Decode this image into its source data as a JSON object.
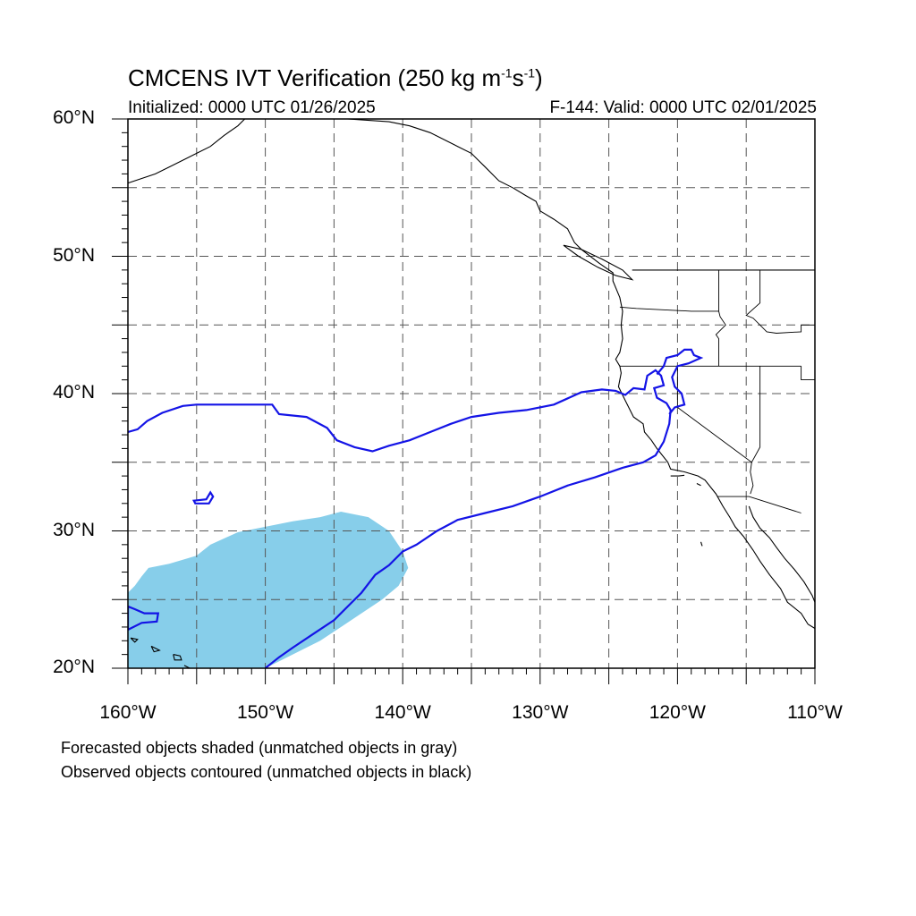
{
  "title": {
    "main": "CMCENS IVT Verification (250 kg m",
    "exp1": "-1",
    "mid": "s",
    "exp2": "-1",
    "close": ")"
  },
  "subtitle": {
    "left": "Initialized: 0000 UTC 01/26/2025",
    "right": "F-144: Valid: 0000 UTC 02/01/2025"
  },
  "map": {
    "extent": {
      "lon_min": -160,
      "lon_max": -110,
      "lat_min": 20,
      "lat_max": 60
    },
    "grid_spacing_deg": 5,
    "lat_labels": [
      {
        "value": 60,
        "text": "60°N"
      },
      {
        "value": 50,
        "text": "50°N"
      },
      {
        "value": 40,
        "text": "40°N"
      },
      {
        "value": 30,
        "text": "30°N"
      },
      {
        "value": 20,
        "text": "20°N"
      }
    ],
    "lon_labels": [
      {
        "value": -160,
        "text": "160°W"
      },
      {
        "value": -150,
        "text": "150°W"
      },
      {
        "value": -140,
        "text": "140°W"
      },
      {
        "value": -130,
        "text": "130°W"
      },
      {
        "value": -120,
        "text": "120°W"
      },
      {
        "value": -110,
        "text": "110°W"
      }
    ],
    "colors": {
      "forecast_fill": "#87ceea",
      "observed_contour": "#1414e6",
      "coastline": "#000000",
      "grid": "#555555"
    },
    "forecast_object": [
      [
        -160,
        20
      ],
      [
        -160,
        25.5
      ],
      [
        -159.5,
        26
      ],
      [
        -159,
        26.7
      ],
      [
        -158.5,
        27.3
      ],
      [
        -157,
        27.6
      ],
      [
        -156,
        27.9
      ],
      [
        -155,
        28.2
      ],
      [
        -154,
        29
      ],
      [
        -152,
        29.9
      ],
      [
        -150,
        30.3
      ],
      [
        -148,
        30.7
      ],
      [
        -146,
        31
      ],
      [
        -144.5,
        31.4
      ],
      [
        -142.5,
        31
      ],
      [
        -141,
        30
      ],
      [
        -140,
        28.5
      ],
      [
        -139.6,
        27.3
      ],
      [
        -140.3,
        26
      ],
      [
        -141.5,
        25
      ],
      [
        -143,
        24
      ],
      [
        -144.5,
        23
      ],
      [
        -146,
        22
      ],
      [
        -148,
        21
      ],
      [
        -150,
        20
      ]
    ],
    "observed_object_1": [
      [
        -160,
        37.2
      ],
      [
        -159.3,
        37.4
      ],
      [
        -158.6,
        38
      ],
      [
        -157.5,
        38.6
      ],
      [
        -156,
        39.1
      ],
      [
        -155,
        39.2
      ],
      [
        -152,
        39.2
      ],
      [
        -149.5,
        39.2
      ],
      [
        -149,
        38.5
      ],
      [
        -147,
        38.3
      ],
      [
        -145.5,
        37.5
      ],
      [
        -144.8,
        36.6
      ],
      [
        -143.5,
        36.1
      ],
      [
        -142.2,
        35.8
      ],
      [
        -141,
        36.2
      ],
      [
        -139.5,
        36.6
      ],
      [
        -138,
        37.2
      ],
      [
        -136.5,
        37.8
      ],
      [
        -135,
        38.3
      ],
      [
        -133,
        38.6
      ],
      [
        -131,
        38.8
      ],
      [
        -129,
        39.2
      ],
      [
        -127,
        40.1
      ],
      [
        -125.5,
        40.3
      ],
      [
        -124.5,
        40.2
      ],
      [
        -123.8,
        39.9
      ],
      [
        -123.2,
        40.4
      ],
      [
        -122.4,
        40.3
      ],
      [
        -122.2,
        41.3
      ],
      [
        -121.6,
        41.7
      ],
      [
        -121.2,
        41.3
      ],
      [
        -121,
        40.6
      ],
      [
        -121.7,
        40.4
      ],
      [
        -121.5,
        39.7
      ],
      [
        -120.8,
        39.3
      ],
      [
        -120.5,
        38.8
      ],
      [
        -120.6,
        37.8
      ],
      [
        -121,
        36.5
      ],
      [
        -121.6,
        35.5
      ],
      [
        -122.5,
        35
      ],
      [
        -124,
        34.6
      ],
      [
        -126,
        33.9
      ],
      [
        -128,
        33.3
      ],
      [
        -130,
        32.5
      ],
      [
        -132,
        31.8
      ],
      [
        -134,
        31.3
      ],
      [
        -136,
        30.8
      ],
      [
        -137.5,
        30
      ],
      [
        -139,
        29
      ],
      [
        -140,
        28.5
      ],
      [
        -141,
        27.5
      ],
      [
        -142,
        26.8
      ],
      [
        -143,
        25.5
      ],
      [
        -144,
        24.5
      ],
      [
        -145,
        23.5
      ],
      [
        -146.5,
        22.5
      ],
      [
        -148,
        21.5
      ],
      [
        -149,
        20.8
      ],
      [
        -150,
        20
      ]
    ],
    "observed_object_2": [
      [
        -121.5,
        41.4
      ],
      [
        -121,
        42
      ],
      [
        -120.8,
        42.6
      ],
      [
        -120,
        42.8
      ],
      [
        -119.5,
        43.2
      ],
      [
        -119,
        43.2
      ],
      [
        -118.8,
        42.8
      ],
      [
        -118.3,
        42.6
      ],
      [
        -119.2,
        42.2
      ],
      [
        -120,
        42
      ],
      [
        -120.4,
        41.2
      ],
      [
        -120.2,
        40.5
      ],
      [
        -119.7,
        40
      ],
      [
        -119.5,
        39.2
      ],
      [
        -120.2,
        39
      ],
      [
        -120.6,
        38.5
      ]
    ],
    "observed_object_3": [
      [
        -155.2,
        32.2
      ],
      [
        -154.3,
        32.3
      ],
      [
        -154,
        32.8
      ],
      [
        -153.8,
        32.5
      ],
      [
        -154.1,
        32
      ],
      [
        -155.1,
        32
      ]
    ],
    "observed_object_4": [
      [
        -160,
        24.5
      ],
      [
        -159.5,
        24.3
      ],
      [
        -158.8,
        24
      ],
      [
        -157.8,
        24
      ],
      [
        -157.9,
        23.4
      ],
      [
        -159,
        23.3
      ],
      [
        -160,
        22.8
      ]
    ],
    "coastline": [
      [
        -161,
        55
      ],
      [
        -158,
        56
      ],
      [
        -157,
        56.5
      ],
      [
        -156,
        57
      ],
      [
        -155,
        57.5
      ],
      [
        -154,
        58
      ],
      [
        -153,
        58.8
      ],
      [
        -152,
        59.5
      ],
      [
        -151.5,
        60
      ],
      [
        -150,
        60.3
      ],
      [
        -148,
        60.5
      ],
      [
        -146,
        60.6
      ],
      [
        -144,
        60
      ],
      [
        -141,
        59.8
      ],
      [
        -139.5,
        59.5
      ],
      [
        -138,
        59
      ],
      [
        -137,
        58.5
      ],
      [
        -136,
        58
      ],
      [
        -135,
        57.5
      ],
      [
        -134.5,
        57
      ],
      [
        -134,
        56.5
      ],
      [
        -133,
        55.5
      ],
      [
        -132,
        55
      ],
      [
        -131,
        54.4
      ],
      [
        -130.3,
        54
      ],
      [
        -130,
        53.3
      ],
      [
        -129,
        52.7
      ],
      [
        -128,
        52
      ],
      [
        -127.5,
        51
      ],
      [
        -127,
        50.5
      ],
      [
        -125.7,
        49.5
      ],
      [
        -124.7,
        48.8
      ],
      [
        -124.7,
        48.2
      ],
      [
        -124.2,
        47
      ],
      [
        -124,
        46
      ],
      [
        -124.1,
        45
      ],
      [
        -124,
        44
      ],
      [
        -124.2,
        43
      ],
      [
        -124.5,
        42.5
      ],
      [
        -124.2,
        42
      ],
      [
        -124.1,
        41.5
      ],
      [
        -124.3,
        40.5
      ],
      [
        -123.8,
        39.5
      ],
      [
        -123.2,
        38.3
      ],
      [
        -122.5,
        37.8
      ],
      [
        -122.4,
        37.2
      ],
      [
        -121.9,
        36.6
      ],
      [
        -121.5,
        36
      ],
      [
        -120.7,
        35
      ],
      [
        -120.5,
        34.5
      ],
      [
        -119.5,
        34.3
      ],
      [
        -118.5,
        34
      ],
      [
        -118,
        33.7
      ],
      [
        -117.2,
        32.7
      ],
      [
        -116.7,
        31.8
      ],
      [
        -116.2,
        31
      ],
      [
        -115.8,
        30.3
      ],
      [
        -115.2,
        29.6
      ],
      [
        -114.5,
        28.6
      ],
      [
        -114,
        27.8
      ],
      [
        -113.3,
        26.8
      ],
      [
        -112.5,
        25.8
      ],
      [
        -112,
        24.8
      ],
      [
        -111,
        24
      ],
      [
        -110.5,
        23.2
      ],
      [
        -110,
        22.9
      ]
    ],
    "gulf_coast": [
      [
        -114.8,
        31.8
      ],
      [
        -114.5,
        31
      ],
      [
        -114,
        30.2
      ],
      [
        -113.3,
        29.5
      ],
      [
        -112.8,
        28.8
      ],
      [
        -112.2,
        28
      ],
      [
        -111.5,
        27.2
      ],
      [
        -110.8,
        26.3
      ],
      [
        -110.2,
        25.3
      ],
      [
        -110,
        24.8
      ]
    ],
    "vancouver_island": [
      [
        -128.3,
        50.8
      ],
      [
        -127,
        50.5
      ],
      [
        -125.5,
        49.8
      ],
      [
        -124,
        49
      ],
      [
        -123.3,
        48.3
      ],
      [
        -124.5,
        48.6
      ],
      [
        -125.8,
        49.2
      ],
      [
        -127.2,
        50
      ],
      [
        -128.3,
        50.8
      ]
    ],
    "canada_us_border": [
      [
        -123.3,
        49
      ],
      [
        -110,
        49
      ]
    ],
    "state_lines": [
      [
        [
          -124.2,
          42
        ],
        [
          -111,
          42
        ]
      ],
      [
        [
          -120,
          42
        ],
        [
          -120,
          39
        ],
        [
          -114.6,
          35
        ]
      ],
      [
        [
          -117,
          49
        ],
        [
          -117,
          46
        ],
        [
          -116.9,
          45.6
        ],
        [
          -116.5,
          45
        ],
        [
          -117.2,
          44.3
        ],
        [
          -117,
          44
        ],
        [
          -117,
          42
        ]
      ],
      [
        [
          -124.2,
          46.3
        ],
        [
          -123,
          46.2
        ],
        [
          -119,
          46
        ],
        [
          -117,
          46
        ]
      ],
      [
        [
          -114,
          49
        ],
        [
          -114,
          46.6
        ],
        [
          -115,
          45.7
        ],
        [
          -114.5,
          45.5
        ],
        [
          -113.5,
          44.5
        ],
        [
          -112.8,
          44.4
        ],
        [
          -111,
          44.5
        ],
        [
          -111,
          45
        ]
      ],
      [
        [
          -114,
          42
        ],
        [
          -114,
          36.1
        ],
        [
          -114.6,
          35
        ],
        [
          -114.7,
          34.3
        ],
        [
          -114.5,
          33.3
        ],
        [
          -114.7,
          32.7
        ]
      ],
      [
        [
          -117.1,
          32.5
        ],
        [
          -114.8,
          32.5
        ],
        [
          -111,
          31.3
        ]
      ],
      [
        [
          -111,
          45
        ],
        [
          -110,
          45
        ]
      ],
      [
        [
          -111,
          42
        ],
        [
          -111,
          41
        ],
        [
          -110,
          41
        ]
      ]
    ],
    "islands": [
      [
        [
          -155.9,
          20.2
        ],
        [
          -155.5,
          20
        ],
        [
          -155,
          19.9
        ]
      ],
      [
        [
          -156.7,
          21
        ],
        [
          -156.2,
          20.9
        ],
        [
          -156.1,
          20.6
        ],
        [
          -156.6,
          20.6
        ],
        [
          -156.7,
          21
        ]
      ],
      [
        [
          -158.3,
          21.6
        ],
        [
          -157.7,
          21.3
        ],
        [
          -158.1,
          21.2
        ],
        [
          -158.3,
          21.6
        ]
      ],
      [
        [
          -159.8,
          22.2
        ],
        [
          -159.3,
          22.1
        ],
        [
          -159.5,
          21.9
        ],
        [
          -159.8,
          22.2
        ]
      ],
      [
        [
          -120.5,
          34
        ],
        [
          -119.9,
          34
        ],
        [
          -119.5,
          34.05
        ]
      ],
      [
        [
          -118.6,
          33.45
        ],
        [
          -118.3,
          33.3
        ]
      ],
      [
        [
          -118.3,
          29.2
        ],
        [
          -118.2,
          28.9
        ]
      ]
    ]
  },
  "footer": {
    "line1": "Forecasted objects shaded (unmatched objects in gray)",
    "line2": "Observed objects contoured (unmatched objects in black)"
  }
}
